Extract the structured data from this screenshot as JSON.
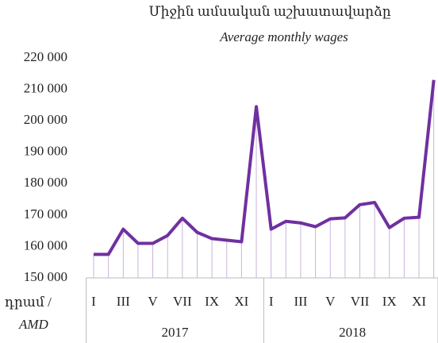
{
  "chart_data": {
    "type": "line",
    "title": "Միջին ամսական աշխատավարձը",
    "subtitle": "Average monthly  wages",
    "y_label": "դրամ /",
    "y_label_en": "AMD",
    "categories": [
      "I",
      null,
      "III",
      null,
      "V",
      null,
      "VII",
      null,
      "IX",
      null,
      "XI",
      null,
      "I",
      null,
      "III",
      null,
      "V",
      null,
      "VII",
      null,
      "IX",
      null,
      "XI",
      null
    ],
    "groups": [
      "2017",
      "2018"
    ],
    "series": [
      {
        "name": "Average monthly wages",
        "color": "#7030a0",
        "values": [
          157500,
          157500,
          165500,
          161000,
          161000,
          163500,
          169000,
          164500,
          162500,
          162000,
          161500,
          204500,
          165500,
          168000,
          167500,
          166300,
          168800,
          169100,
          173300,
          174000,
          166000,
          169000,
          169300,
          213000
        ]
      }
    ],
    "drop_lines": true,
    "drop_line_color": "#c9b3dc",
    "ylim": [
      150000,
      220000
    ],
    "yticks": [
      {
        "value": 150000,
        "label": "150 000"
      },
      {
        "value": 160000,
        "label": "160 000"
      },
      {
        "value": 170000,
        "label": "170 000"
      },
      {
        "value": 180000,
        "label": "180 000"
      },
      {
        "value": 190000,
        "label": "190 000"
      },
      {
        "value": 200000,
        "label": "200 000"
      },
      {
        "value": 210000,
        "label": "210 000"
      },
      {
        "value": 220000,
        "label": "220 000"
      }
    ]
  }
}
